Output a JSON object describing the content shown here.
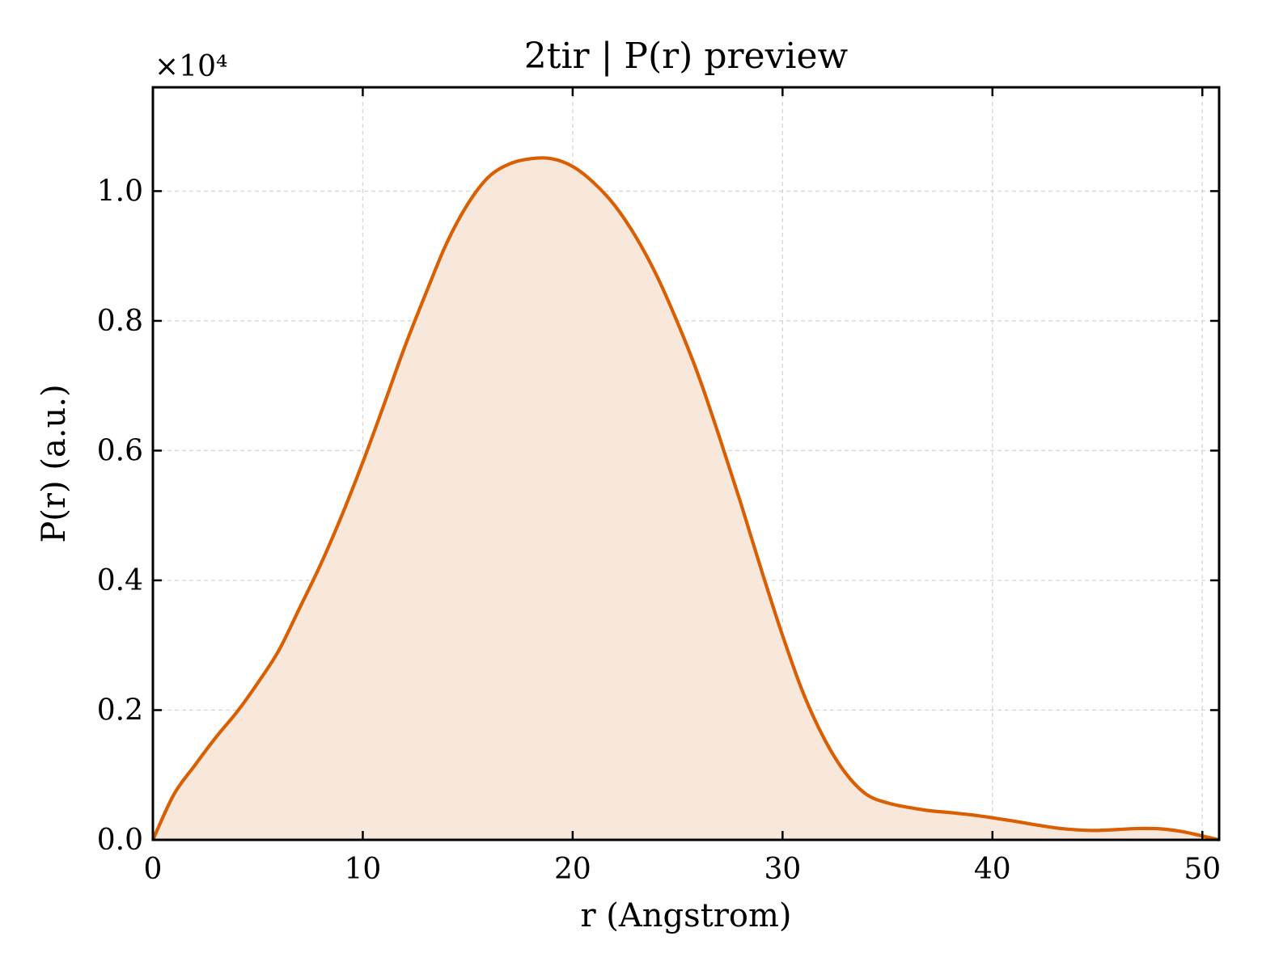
{
  "chart_data": {
    "type": "area",
    "title": "2tir | P(r) preview",
    "xlabel": "r (Angstrom)",
    "ylabel": "P(r) (a.u.)",
    "y_offset_label": "×10⁴",
    "y_scale_factor": 10000,
    "xlim": [
      0,
      50.8
    ],
    "ylim": [
      0,
      11600
    ],
    "xticks": [
      0,
      10,
      20,
      30,
      40,
      50
    ],
    "xtick_labels": [
      "0",
      "10",
      "20",
      "30",
      "40",
      "50"
    ],
    "yticks": [
      0,
      2000,
      4000,
      6000,
      8000,
      10000
    ],
    "ytick_labels": [
      "0.0",
      "0.2",
      "0.4",
      "0.6",
      "0.8",
      "1.0"
    ],
    "grid": true,
    "colors": {
      "line": "#d95f02",
      "fill": "#f8e8dc"
    },
    "series": [
      {
        "x": [
          0,
          1,
          2,
          3,
          4,
          5,
          6,
          7,
          8,
          9,
          10,
          11,
          12,
          13,
          14,
          15,
          16,
          17,
          18,
          19,
          20,
          21,
          22,
          23,
          24,
          25,
          26,
          27,
          28,
          29,
          30,
          31,
          32,
          33,
          34,
          35,
          36,
          37,
          38,
          39,
          40,
          41,
          42,
          43,
          44,
          45,
          46,
          47,
          48,
          49,
          50,
          50.8
        ],
        "y": [
          0,
          700,
          1150,
          1580,
          1970,
          2420,
          2920,
          3580,
          4250,
          5000,
          5820,
          6700,
          7600,
          8420,
          9200,
          9800,
          10220,
          10420,
          10500,
          10500,
          10380,
          10130,
          9780,
          9300,
          8700,
          7970,
          7150,
          6200,
          5200,
          4150,
          3150,
          2250,
          1550,
          1030,
          700,
          570,
          500,
          450,
          420,
          385,
          340,
          290,
          235,
          185,
          155,
          145,
          160,
          175,
          170,
          130,
          60,
          0
        ]
      }
    ]
  }
}
